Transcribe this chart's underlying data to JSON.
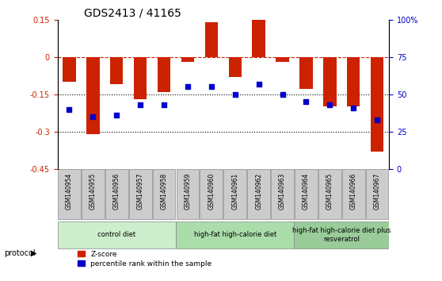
{
  "title": "GDS2413 / 41165",
  "samples": [
    "GSM140954",
    "GSM140955",
    "GSM140956",
    "GSM140957",
    "GSM140958",
    "GSM140959",
    "GSM140960",
    "GSM140961",
    "GSM140962",
    "GSM140963",
    "GSM140964",
    "GSM140965",
    "GSM140966",
    "GSM140967"
  ],
  "zscore": [
    -0.1,
    -0.31,
    -0.11,
    -0.17,
    -0.14,
    -0.02,
    0.14,
    -0.08,
    0.15,
    -0.02,
    -0.13,
    -0.2,
    -0.2,
    -0.38
  ],
  "percentile": [
    40,
    35,
    36,
    43,
    43,
    55,
    55,
    50,
    57,
    50,
    45,
    43,
    41,
    33
  ],
  "ylim_left": [
    -0.45,
    0.15
  ],
  "ylim_right": [
    0,
    100
  ],
  "yticks_left": [
    0.15,
    0,
    -0.15,
    -0.3,
    -0.45
  ],
  "yticks_right": [
    100,
    75,
    50,
    25,
    0
  ],
  "hline_zero": 0,
  "dotted_lines": [
    -0.15,
    -0.3
  ],
  "bar_color": "#cc2200",
  "dot_color": "#0000cc",
  "groups": [
    {
      "label": "control diet",
      "start": 0,
      "end": 5,
      "color": "#cceecc"
    },
    {
      "label": "high-fat high-calorie diet",
      "start": 5,
      "end": 10,
      "color": "#aaddaa"
    },
    {
      "label": "high-fat high-calorie diet plus\nresveratrol",
      "start": 10,
      "end": 14,
      "color": "#99cc99"
    }
  ],
  "xlabel_row_bg": "#cccccc",
  "legend_zscore": "Z-score",
  "legend_pct": "percentile rank within the sample",
  "protocol_label": "protocol"
}
